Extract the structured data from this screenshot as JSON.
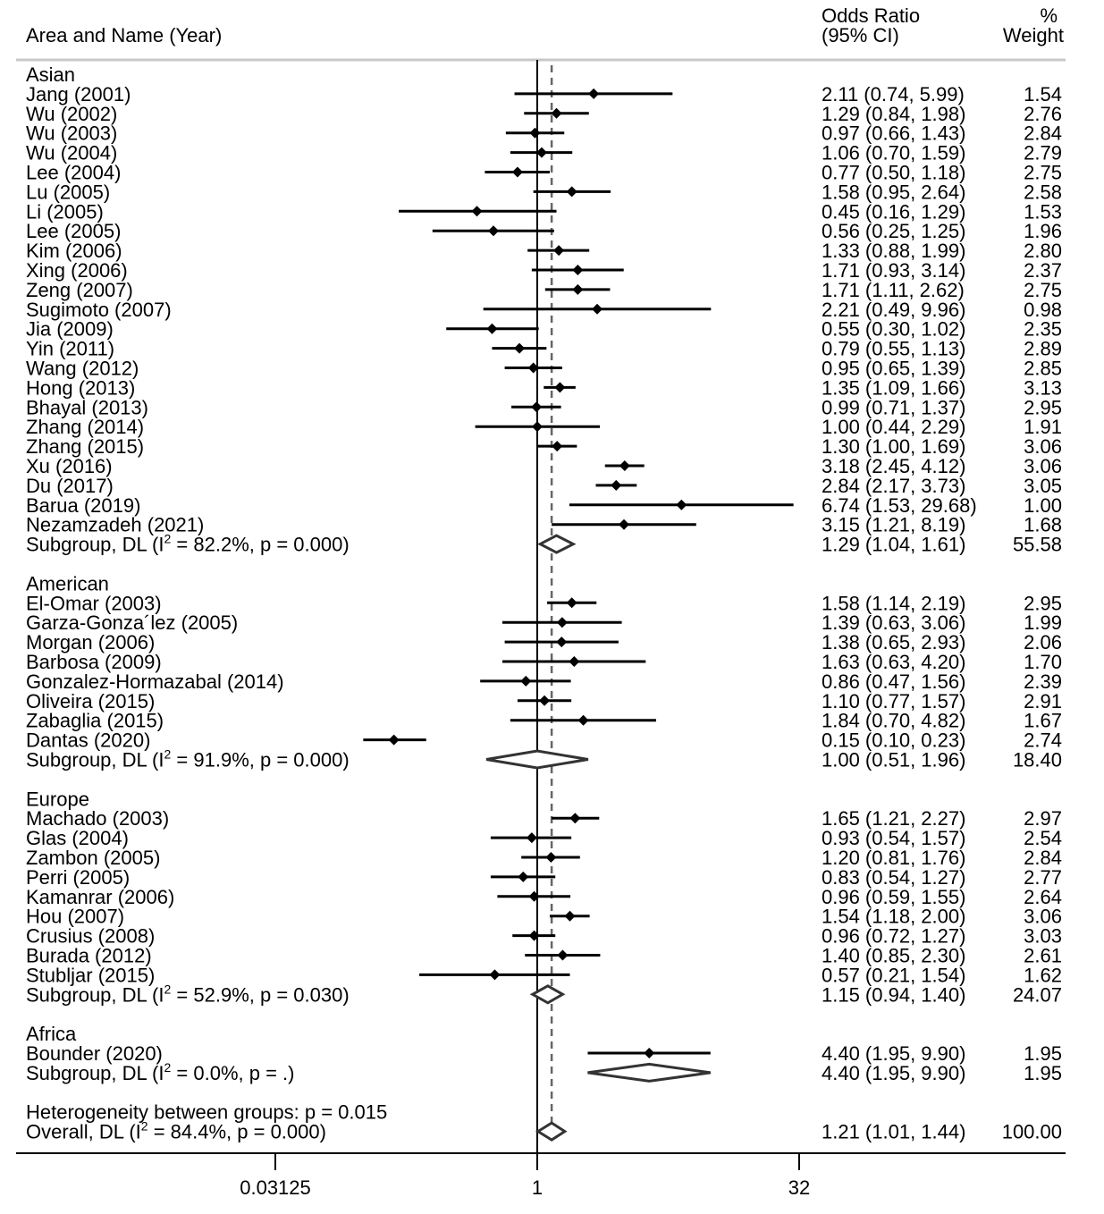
{
  "chart_data": {
    "type": "forest",
    "header": {
      "study_label": "Area and Name (Year)",
      "effect_label_line1": "Odds Ratio",
      "effect_label_line2": "(95% CI)",
      "weight_label_line1": "%",
      "weight_label_line2": "Weight"
    },
    "x_scale": "log2",
    "x_ticks": [
      {
        "value": 0.03125,
        "label": "0.03125"
      },
      {
        "value": 1,
        "label": "1"
      },
      {
        "value": 32,
        "label": "32"
      }
    ],
    "null_line": 1,
    "overall_line": 1.21,
    "groups": [
      {
        "name": "Asian",
        "studies": [
          {
            "label": "Jang (2001)",
            "or": 2.11,
            "lo": 0.74,
            "hi": 5.99,
            "ci_text": "2.11 (0.74, 5.99)",
            "weight": "1.54"
          },
          {
            "label": "Wu (2002)",
            "or": 1.29,
            "lo": 0.84,
            "hi": 1.98,
            "ci_text": "1.29 (0.84, 1.98)",
            "weight": "2.76"
          },
          {
            "label": "Wu (2003)",
            "or": 0.97,
            "lo": 0.66,
            "hi": 1.43,
            "ci_text": "0.97 (0.66, 1.43)",
            "weight": "2.84"
          },
          {
            "label": "Wu (2004)",
            "or": 1.06,
            "lo": 0.7,
            "hi": 1.59,
            "ci_text": "1.06 (0.70, 1.59)",
            "weight": "2.79"
          },
          {
            "label": "Lee (2004)",
            "or": 0.77,
            "lo": 0.5,
            "hi": 1.18,
            "ci_text": "0.77 (0.50, 1.18)",
            "weight": "2.75"
          },
          {
            "label": "Lu (2005)",
            "or": 1.58,
            "lo": 0.95,
            "hi": 2.64,
            "ci_text": "1.58 (0.95, 2.64)",
            "weight": "2.58"
          },
          {
            "label": "Li (2005)",
            "or": 0.45,
            "lo": 0.16,
            "hi": 1.29,
            "ci_text": "0.45 (0.16, 1.29)",
            "weight": "1.53"
          },
          {
            "label": "Lee (2005)",
            "or": 0.56,
            "lo": 0.25,
            "hi": 1.25,
            "ci_text": "0.56 (0.25, 1.25)",
            "weight": "1.96"
          },
          {
            "label": "Kim (2006)",
            "or": 1.33,
            "lo": 0.88,
            "hi": 1.99,
            "ci_text": "1.33 (0.88, 1.99)",
            "weight": "2.80"
          },
          {
            "label": "Xing (2006)",
            "or": 1.71,
            "lo": 0.93,
            "hi": 3.14,
            "ci_text": "1.71 (0.93, 3.14)",
            "weight": "2.37"
          },
          {
            "label": "Zeng (2007)",
            "or": 1.71,
            "lo": 1.11,
            "hi": 2.62,
            "ci_text": "1.71 (1.11, 2.62)",
            "weight": "2.75"
          },
          {
            "label": "Sugimoto (2007)",
            "or": 2.21,
            "lo": 0.49,
            "hi": 9.96,
            "ci_text": "2.21 (0.49, 9.96)",
            "weight": "0.98"
          },
          {
            "label": "Jia (2009)",
            "or": 0.55,
            "lo": 0.3,
            "hi": 1.02,
            "ci_text": "0.55 (0.30, 1.02)",
            "weight": "2.35"
          },
          {
            "label": "Yin (2011)",
            "or": 0.79,
            "lo": 0.55,
            "hi": 1.13,
            "ci_text": "0.79 (0.55, 1.13)",
            "weight": "2.89"
          },
          {
            "label": "Wang (2012)",
            "or": 0.95,
            "lo": 0.65,
            "hi": 1.39,
            "ci_text": "0.95 (0.65, 1.39)",
            "weight": "2.85"
          },
          {
            "label": "Hong (2013)",
            "or": 1.35,
            "lo": 1.09,
            "hi": 1.66,
            "ci_text": "1.35 (1.09, 1.66)",
            "weight": "3.13"
          },
          {
            "label": "Bhayal (2013)",
            "or": 0.99,
            "lo": 0.71,
            "hi": 1.37,
            "ci_text": "0.99 (0.71, 1.37)",
            "weight": "2.95"
          },
          {
            "label": "Zhang (2014)",
            "or": 1.0,
            "lo": 0.44,
            "hi": 2.29,
            "ci_text": "1.00 (0.44, 2.29)",
            "weight": "1.91"
          },
          {
            "label": "Zhang (2015)",
            "or": 1.3,
            "lo": 1.0,
            "hi": 1.69,
            "ci_text": "1.30 (1.00, 1.69)",
            "weight": "3.06"
          },
          {
            "label": "Xu (2016)",
            "or": 3.18,
            "lo": 2.45,
            "hi": 4.12,
            "ci_text": "3.18 (2.45, 4.12)",
            "weight": "3.06"
          },
          {
            "label": "Du (2017)",
            "or": 2.84,
            "lo": 2.17,
            "hi": 3.73,
            "ci_text": "2.84 (2.17, 3.73)",
            "weight": "3.05"
          },
          {
            "label": "Barua (2019)",
            "or": 6.74,
            "lo": 1.53,
            "hi": 29.68,
            "ci_text": "6.74 (1.53, 29.68)",
            "weight": "1.00"
          },
          {
            "label": "Nezamzadeh (2021)",
            "or": 3.15,
            "lo": 1.21,
            "hi": 8.19,
            "ci_text": "3.15 (1.21, 8.19)",
            "weight": "1.68"
          }
        ],
        "subgroup": {
          "label_prefix": "Subgroup, DL (I",
          "sup": "2",
          "label_suffix": " = 82.2%, p = 0.000)",
          "or": 1.29,
          "lo": 1.04,
          "hi": 1.61,
          "ci_text": "1.29 (1.04, 1.61)",
          "weight": "55.58"
        }
      },
      {
        "name": "American",
        "studies": [
          {
            "label": "El-Omar (2003)",
            "or": 1.58,
            "lo": 1.14,
            "hi": 2.19,
            "ci_text": "1.58 (1.14, 2.19)",
            "weight": "2.95"
          },
          {
            "label": "Garza-Gonza´lez (2005)",
            "or": 1.39,
            "lo": 0.63,
            "hi": 3.06,
            "ci_text": "1.39 (0.63, 3.06)",
            "weight": "1.99"
          },
          {
            "label": "Morgan (2006)",
            "or": 1.38,
            "lo": 0.65,
            "hi": 2.93,
            "ci_text": "1.38 (0.65, 2.93)",
            "weight": "2.06"
          },
          {
            "label": "Barbosa (2009)",
            "or": 1.63,
            "lo": 0.63,
            "hi": 4.2,
            "ci_text": "1.63 (0.63, 4.20)",
            "weight": "1.70"
          },
          {
            "label": "Gonzalez-Hormazabal (2014)",
            "or": 0.86,
            "lo": 0.47,
            "hi": 1.56,
            "ci_text": "0.86 (0.47, 1.56)",
            "weight": "2.39"
          },
          {
            "label": "Oliveira (2015)",
            "or": 1.1,
            "lo": 0.77,
            "hi": 1.57,
            "ci_text": "1.10 (0.77, 1.57)",
            "weight": "2.91"
          },
          {
            "label": "Zabaglia (2015)",
            "or": 1.84,
            "lo": 0.7,
            "hi": 4.82,
            "ci_text": "1.84 (0.70, 4.82)",
            "weight": "1.67"
          },
          {
            "label": "Dantas (2020)",
            "or": 0.15,
            "lo": 0.1,
            "hi": 0.23,
            "ci_text": "0.15 (0.10, 0.23)",
            "weight": "2.74"
          }
        ],
        "subgroup": {
          "label_prefix": "Subgroup, DL (I",
          "sup": "2",
          "label_suffix": " = 91.9%, p = 0.000)",
          "or": 1.0,
          "lo": 0.51,
          "hi": 1.96,
          "ci_text": "1.00 (0.51, 1.96)",
          "weight": "18.40"
        }
      },
      {
        "name": "Europe",
        "studies": [
          {
            "label": "Machado (2003)",
            "or": 1.65,
            "lo": 1.21,
            "hi": 2.27,
            "ci_text": "1.65 (1.21, 2.27)",
            "weight": "2.97"
          },
          {
            "label": "Glas (2004)",
            "or": 0.93,
            "lo": 0.54,
            "hi": 1.57,
            "ci_text": "0.93 (0.54, 1.57)",
            "weight": "2.54"
          },
          {
            "label": "Zambon (2005)",
            "or": 1.2,
            "lo": 0.81,
            "hi": 1.76,
            "ci_text": "1.20 (0.81, 1.76)",
            "weight": "2.84"
          },
          {
            "label": "Perri (2005)",
            "or": 0.83,
            "lo": 0.54,
            "hi": 1.27,
            "ci_text": "0.83 (0.54, 1.27)",
            "weight": "2.77"
          },
          {
            "label": "Kamanrar (2006)",
            "or": 0.96,
            "lo": 0.59,
            "hi": 1.55,
            "ci_text": "0.96 (0.59, 1.55)",
            "weight": "2.64"
          },
          {
            "label": "Hou (2007)",
            "or": 1.54,
            "lo": 1.18,
            "hi": 2.0,
            "ci_text": "1.54 (1.18, 2.00)",
            "weight": "3.06"
          },
          {
            "label": "Crusius (2008)",
            "or": 0.96,
            "lo": 0.72,
            "hi": 1.27,
            "ci_text": "0.96 (0.72, 1.27)",
            "weight": "3.03"
          },
          {
            "label": "Burada (2012)",
            "or": 1.4,
            "lo": 0.85,
            "hi": 2.3,
            "ci_text": "1.40 (0.85, 2.30)",
            "weight": "2.61"
          },
          {
            "label": "Stubljar (2015)",
            "or": 0.57,
            "lo": 0.21,
            "hi": 1.54,
            "ci_text": "0.57 (0.21, 1.54)",
            "weight": "1.62"
          }
        ],
        "subgroup": {
          "label_prefix": "Subgroup, DL (I",
          "sup": "2",
          "label_suffix": " = 52.9%, p = 0.030)",
          "or": 1.15,
          "lo": 0.94,
          "hi": 1.4,
          "ci_text": "1.15 (0.94, 1.40)",
          "weight": "24.07"
        }
      },
      {
        "name": "Africa",
        "studies": [
          {
            "label": "Bounder (2020)",
            "or": 4.4,
            "lo": 1.95,
            "hi": 9.9,
            "ci_text": "4.40 (1.95, 9.90)",
            "weight": "1.95"
          }
        ],
        "subgroup": {
          "label_prefix": "Subgroup, DL (I",
          "sup": "2",
          "label_suffix": " = 0.0%, p = .)",
          "or": 4.4,
          "lo": 1.95,
          "hi": 9.9,
          "ci_text": "4.40 (1.95, 9.90)",
          "weight": "1.95"
        }
      }
    ],
    "heterogeneity_text": "Heterogeneity between groups: p = 0.015",
    "overall": {
      "label_prefix": "Overall, DL (I",
      "sup": "2",
      "label_suffix": " = 84.4%, p = 0.000)",
      "or": 1.21,
      "lo": 1.01,
      "hi": 1.44,
      "ci_text": "1.21 (1.01, 1.44)",
      "weight": "100.00"
    }
  }
}
